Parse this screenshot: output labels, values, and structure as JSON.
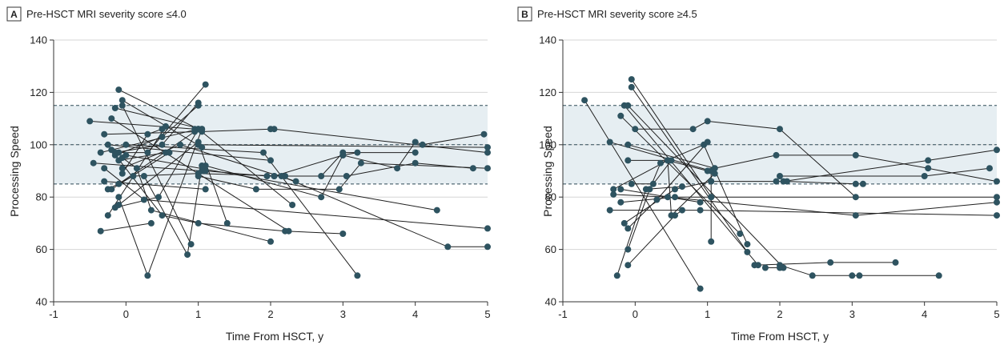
{
  "chart_data": [
    {
      "type": "scatter",
      "panel_letter": "A",
      "title": "Pre-HSCT MRI severity score ≤4.0",
      "xlabel": "Time From HSCT, y",
      "ylabel": "Processing Speed",
      "xlim": [
        -1,
        5
      ],
      "ylim": [
        40,
        140
      ],
      "xticks": [
        -1,
        0,
        1,
        2,
        3,
        4,
        5
      ],
      "yticks": [
        40,
        60,
        80,
        100,
        120,
        140
      ],
      "normal_band": [
        85,
        115
      ],
      "reference_lines": [
        85,
        100,
        115
      ],
      "band_color": "#e6eef2",
      "point_color": "#2e5360",
      "grid": true,
      "series": [
        {
          "points": [
            [
              -0.5,
              109
            ],
            [
              0.95,
              106
            ]
          ]
        },
        {
          "points": [
            [
              -0.1,
              121
            ],
            [
              1.0,
              106
            ]
          ]
        },
        {
          "points": [
            [
              -0.05,
              117
            ],
            [
              1.05,
              99
            ]
          ]
        },
        {
          "points": [
            [
              -0.15,
              114
            ],
            [
              1.05,
              106
            ]
          ]
        },
        {
          "points": [
            [
              -0.05,
              115
            ],
            [
              0.9,
              62
            ]
          ]
        },
        {
          "points": [
            [
              -0.2,
              110
            ],
            [
              2.25,
              67
            ]
          ]
        },
        {
          "points": [
            [
              -0.45,
              93
            ],
            [
              1.05,
              90
            ]
          ]
        },
        {
          "points": [
            [
              -0.35,
              97
            ],
            [
              1.0,
              106
            ]
          ]
        },
        {
          "points": [
            [
              -0.3,
              104
            ],
            [
              1.05,
              105
            ],
            [
              2.0,
              106
            ],
            [
              2.05,
              106
            ],
            [
              5.0,
              97
            ]
          ]
        },
        {
          "points": [
            [
              -0.25,
              100
            ],
            [
              2.0,
              94
            ]
          ]
        },
        {
          "points": [
            [
              -0.3,
              91
            ],
            [
              0.25,
              79
            ],
            [
              5.0,
              68
            ]
          ]
        },
        {
          "points": [
            [
              -0.3,
              86
            ],
            [
              1.1,
              83
            ]
          ]
        },
        {
          "points": [
            [
              -0.25,
              83
            ],
            [
              0.1,
              88
            ],
            [
              1.0,
              89
            ],
            [
              2.2,
              88
            ]
          ]
        },
        {
          "points": [
            [
              -0.35,
              67
            ],
            [
              0.35,
              70
            ]
          ]
        },
        {
          "points": [
            [
              -0.25,
              73
            ],
            [
              0.55,
              107
            ]
          ]
        },
        {
          "points": [
            [
              -0.1,
              97
            ],
            [
              0.3,
              97
            ],
            [
              1.1,
              123
            ]
          ]
        },
        {
          "points": [
            [
              -0.15,
              96
            ],
            [
              0.5,
              103
            ],
            [
              1.0,
              115
            ]
          ]
        },
        {
          "points": [
            [
              -0.15,
              97
            ],
            [
              0.5,
              100
            ],
            [
              1.0,
              116
            ]
          ]
        },
        {
          "points": [
            [
              -0.1,
              94
            ],
            [
              0.55,
              97
            ]
          ]
        },
        {
          "points": [
            [
              -0.05,
              89
            ],
            [
              0.3,
              104
            ],
            [
              0.5,
              106
            ]
          ]
        },
        {
          "points": [
            [
              -0.2,
              83
            ],
            [
              0.6,
              97
            ]
          ]
        },
        {
          "points": [
            [
              -0.05,
              95
            ],
            [
              0.15,
              91
            ],
            [
              0.35,
              75
            ],
            [
              2.0,
              63
            ]
          ]
        },
        {
          "points": [
            [
              -0.15,
              76
            ],
            [
              0.45,
              80
            ],
            [
              1.0,
              106
            ],
            [
              2.3,
              77
            ]
          ]
        },
        {
          "points": [
            [
              -0.2,
              98
            ],
            [
              0.5,
              73
            ],
            [
              1.0,
              70
            ],
            [
              2.2,
              67
            ],
            [
              3.0,
              66
            ]
          ]
        },
        {
          "points": [
            [
              -0.1,
              80
            ],
            [
              0.3,
              50
            ],
            [
              1.05,
              106
            ]
          ]
        },
        {
          "points": [
            [
              0.25,
              88
            ],
            [
              0.85,
              58
            ],
            [
              1.05,
              92
            ]
          ]
        },
        {
          "points": [
            [
              -0.1,
              85
            ],
            [
              0.95,
              105
            ]
          ]
        },
        {
          "points": [
            [
              -0.1,
              77
            ],
            [
              1.0,
              101
            ],
            [
              1.4,
              70
            ]
          ]
        },
        {
          "points": [
            [
              0.0,
              100
            ],
            [
              1.9,
              97
            ],
            [
              3.2,
              50
            ]
          ]
        },
        {
          "points": [
            [
              -0.05,
              91
            ],
            [
              0.75,
              100
            ],
            [
              2.35,
              86
            ]
          ]
        },
        {
          "points": [
            [
              0.0,
              96
            ],
            [
              4.3,
              75
            ]
          ]
        },
        {
          "points": [
            [
              1.0,
              100
            ],
            [
              5.0,
              99
            ]
          ]
        },
        {
          "points": [
            [
              1.1,
              90
            ],
            [
              1.95,
              88
            ],
            [
              2.7,
              88
            ],
            [
              3.0,
              97
            ],
            [
              4.0,
              97
            ]
          ]
        },
        {
          "points": [
            [
              1.0,
              88
            ],
            [
              1.8,
              83
            ],
            [
              2.95,
              83
            ],
            [
              3.25,
              93
            ],
            [
              5.0,
              91
            ]
          ]
        },
        {
          "points": [
            [
              1.1,
              92
            ],
            [
              2.7,
              80
            ],
            [
              3.0,
              96
            ],
            [
              3.75,
              91
            ],
            [
              4.0,
              101
            ],
            [
              4.1,
              100
            ],
            [
              4.95,
              104
            ]
          ]
        },
        {
          "points": [
            [
              2.05,
              88
            ],
            [
              3.05,
              88
            ],
            [
              4.0,
              93
            ],
            [
              4.8,
              91
            ]
          ]
        },
        {
          "points": [
            [
              2.05,
              88
            ],
            [
              3.0,
              96
            ],
            [
              3.2,
              97
            ]
          ]
        },
        {
          "points": [
            [
              2.15,
              88
            ],
            [
              4.45,
              61
            ],
            [
              5.0,
              61
            ]
          ]
        }
      ]
    },
    {
      "type": "scatter",
      "panel_letter": "B",
      "title": "Pre-HSCT MRI severity score ≥4.5",
      "xlabel": "Time From HSCT, y",
      "ylabel": "Processing Speed",
      "xlim": [
        -1,
        5
      ],
      "ylim": [
        40,
        140
      ],
      "xticks": [
        -1,
        0,
        1,
        2,
        3,
        4,
        5
      ],
      "yticks": [
        40,
        60,
        80,
        100,
        120,
        140
      ],
      "normal_band": [
        85,
        115
      ],
      "reference_lines": [
        85,
        100,
        115
      ],
      "band_color": "#e6eef2",
      "point_color": "#2e5360",
      "grid": true,
      "series": [
        {
          "points": [
            [
              -0.7,
              117
            ],
            [
              0.9,
              45
            ]
          ]
        },
        {
          "points": [
            [
              -0.05,
              125
            ],
            [
              1.05,
              80
            ]
          ]
        },
        {
          "points": [
            [
              -0.05,
              122
            ],
            [
              1.55,
              59
            ]
          ]
        },
        {
          "points": [
            [
              -0.15,
              115
            ],
            [
              1.7,
              54
            ]
          ]
        },
        {
          "points": [
            [
              -0.1,
              115
            ],
            [
              2.05,
              53
            ]
          ]
        },
        {
          "points": [
            [
              -0.2,
              111
            ],
            [
              1.45,
              66
            ]
          ]
        },
        {
          "points": [
            [
              -0.35,
              101
            ],
            [
              1.05,
              90
            ],
            [
              1.05,
              63
            ]
          ]
        },
        {
          "points": [
            [
              -0.3,
              83
            ],
            [
              0.45,
              94
            ],
            [
              0.5,
              73
            ],
            [
              1.1,
              89
            ]
          ]
        },
        {
          "points": [
            [
              -0.2,
              83
            ],
            [
              0.9,
              78
            ]
          ]
        },
        {
          "points": [
            [
              -0.1,
              100
            ],
            [
              1.1,
              91
            ]
          ]
        },
        {
          "points": [
            [
              -0.1,
              94
            ],
            [
              0.45,
              94
            ],
            [
              1.0,
              90
            ]
          ]
        },
        {
          "points": [
            [
              -0.05,
              85
            ],
            [
              0.25,
              85
            ],
            [
              0.5,
              94
            ]
          ]
        },
        {
          "points": [
            [
              -0.15,
              70
            ],
            [
              0.55,
              83
            ],
            [
              1.05,
              86
            ]
          ]
        },
        {
          "points": [
            [
              -0.1,
              68
            ],
            [
              0.3,
              79
            ],
            [
              1.0,
              101
            ]
          ]
        },
        {
          "points": [
            [
              -0.1,
              60
            ],
            [
              0.2,
              83
            ],
            [
              0.35,
              93
            ],
            [
              0.95,
              100
            ],
            [
              1.55,
              62
            ]
          ]
        },
        {
          "points": [
            [
              -0.1,
              54
            ],
            [
              0.55,
              73
            ],
            [
              0.65,
              75
            ]
          ]
        },
        {
          "points": [
            [
              -0.25,
              50
            ],
            [
              0.15,
              83
            ],
            [
              0.65,
              84
            ]
          ]
        },
        {
          "points": [
            [
              -0.35,
              75
            ],
            [
              0.9,
              75
            ],
            [
              5.0,
              73
            ]
          ]
        },
        {
          "points": [
            [
              -0.3,
              81
            ],
            [
              0.45,
              80
            ],
            [
              3.05,
              73
            ],
            [
              5.0,
              78
            ]
          ]
        },
        {
          "points": [
            [
              -0.2,
              78
            ],
            [
              0.55,
              80
            ],
            [
              1.05,
              80
            ],
            [
              5.0,
              80
            ]
          ]
        },
        {
          "points": [
            [
              0.0,
              106
            ],
            [
              0.8,
              106
            ],
            [
              1.0,
              109
            ],
            [
              2.0,
              106
            ],
            [
              3.05,
              80
            ]
          ]
        },
        {
          "points": [
            [
              1.1,
              91
            ],
            [
              1.95,
              96
            ],
            [
              3.05,
              96
            ],
            [
              4.05,
              91
            ],
            [
              5.0,
              86
            ]
          ]
        },
        {
          "points": [
            [
              2.0,
              88
            ],
            [
              4.0,
              88
            ],
            [
              4.9,
              91
            ]
          ]
        },
        {
          "points": [
            [
              2.1,
              86
            ],
            [
              3.05,
              85
            ],
            [
              3.15,
              85
            ]
          ]
        },
        {
          "points": [
            [
              1.05,
              86
            ],
            [
              1.95,
              86
            ],
            [
              2.05,
              86
            ],
            [
              4.05,
              94
            ],
            [
              5.0,
              98
            ]
          ]
        },
        {
          "points": [
            [
              1.65,
              54
            ],
            [
              2.7,
              55
            ],
            [
              3.6,
              55
            ]
          ]
        },
        {
          "points": [
            [
              2.0,
              54
            ],
            [
              2.45,
              50
            ],
            [
              3.0,
              50
            ],
            [
              3.1,
              50
            ],
            [
              4.2,
              50
            ]
          ]
        },
        {
          "points": [
            [
              1.8,
              53
            ],
            [
              2.0,
              53
            ]
          ]
        }
      ]
    }
  ]
}
